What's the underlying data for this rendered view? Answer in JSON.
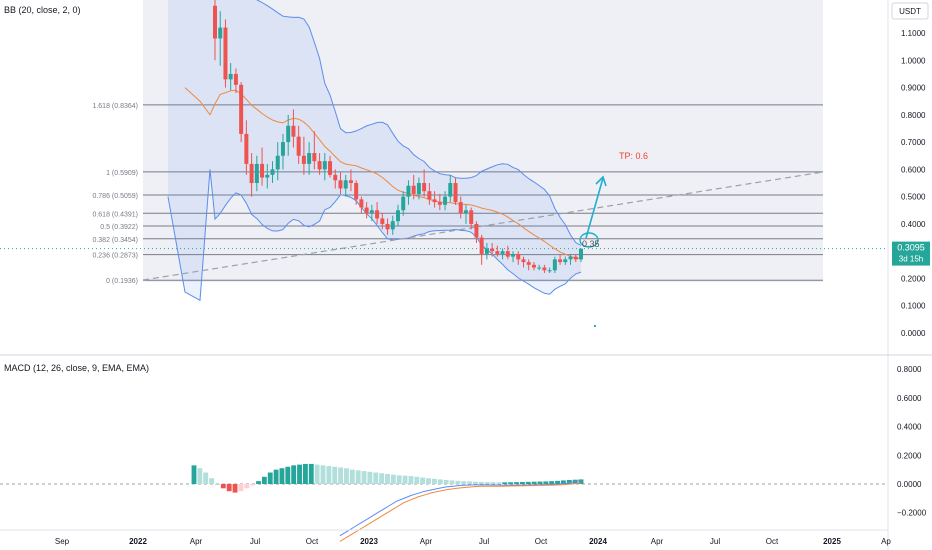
{
  "main_pane": {
    "indicator_label": "BB (20, close, 2, 0)",
    "currency": "USDT",
    "y_ticks": [
      "1.1000",
      "1.0000",
      "0.9000",
      "0.8000",
      "0.7000",
      "0.6000",
      "0.5000",
      "0.4000",
      "0.3000",
      "0.2000",
      "0.1000",
      "0.0000"
    ],
    "last_price": "0.3095",
    "countdown": "3d 15h",
    "tp_label": "TP: 0.6",
    "target_label": "0.35",
    "fib_labels": [
      "1.618 (0.8364)",
      "1 (0.5909)",
      "0.786 (0.5059)",
      "0.618 (0.4391)",
      "0.5 (0.3922)",
      "0.382 (0.3454)",
      "0.236 (0.2873)",
      "0 (0.1936)"
    ]
  },
  "macd_pane": {
    "indicator_label": "MACD (12, 26, close, 9, EMA, EMA)",
    "y_ticks": [
      "0.8000",
      "0.6000",
      "0.4000",
      "0.2000",
      "0.0000",
      "−0.2000"
    ]
  },
  "x_axis": {
    "labels": [
      "Sep",
      "2022",
      "Apr",
      "Jul",
      "Oct",
      "2023",
      "Apr",
      "Jul",
      "Oct",
      "2024",
      "Apr",
      "Jul",
      "Oct",
      "2025",
      "Ap"
    ]
  },
  "colors": {
    "up": "#26a69a",
    "down": "#ef5350",
    "bb_band": "#5b8def",
    "bb_basis": "#f0883e",
    "price_label": "#26a69a",
    "tp_text": "#f44336",
    "arrow": "#22aecd",
    "fib_line": "#787b86"
  },
  "chart_data": [
    {
      "type": "candlestick",
      "title": "",
      "y_range": [
        -0.05,
        1.2
      ],
      "fib_levels": [
        {
          "ratio": 1.618,
          "price": 0.8364
        },
        {
          "ratio": 1,
          "price": 0.5909
        },
        {
          "ratio": 0.786,
          "price": 0.5059
        },
        {
          "ratio": 0.618,
          "price": 0.4391
        },
        {
          "ratio": 0.5,
          "price": 0.3922
        },
        {
          "ratio": 0.382,
          "price": 0.3454
        },
        {
          "ratio": 0.236,
          "price": 0.2873
        },
        {
          "ratio": 0,
          "price": 0.1936
        }
      ],
      "last_price": 0.3095,
      "target": 0.35,
      "take_profit": 0.6,
      "candles": [
        {
          "o": 1.2,
          "h": 1.25,
          "l": 1.0,
          "c": 1.08
        },
        {
          "o": 1.08,
          "h": 1.18,
          "l": 0.98,
          "c": 1.12
        },
        {
          "o": 1.12,
          "h": 1.15,
          "l": 0.9,
          "c": 0.93
        },
        {
          "o": 0.93,
          "h": 0.99,
          "l": 0.89,
          "c": 0.95
        },
        {
          "o": 0.95,
          "h": 0.97,
          "l": 0.88,
          "c": 0.91
        },
        {
          "o": 0.91,
          "h": 0.92,
          "l": 0.7,
          "c": 0.73
        },
        {
          "o": 0.73,
          "h": 0.78,
          "l": 0.58,
          "c": 0.62
        },
        {
          "o": 0.62,
          "h": 0.66,
          "l": 0.5,
          "c": 0.55
        },
        {
          "o": 0.55,
          "h": 0.65,
          "l": 0.52,
          "c": 0.62
        },
        {
          "o": 0.62,
          "h": 0.68,
          "l": 0.54,
          "c": 0.57
        },
        {
          "o": 0.57,
          "h": 0.62,
          "l": 0.53,
          "c": 0.58
        },
        {
          "o": 0.58,
          "h": 0.63,
          "l": 0.55,
          "c": 0.6
        },
        {
          "o": 0.6,
          "h": 0.7,
          "l": 0.56,
          "c": 0.65
        },
        {
          "o": 0.65,
          "h": 0.73,
          "l": 0.6,
          "c": 0.7
        },
        {
          "o": 0.7,
          "h": 0.8,
          "l": 0.65,
          "c": 0.76
        },
        {
          "o": 0.76,
          "h": 0.82,
          "l": 0.68,
          "c": 0.72
        },
        {
          "o": 0.72,
          "h": 0.76,
          "l": 0.62,
          "c": 0.65
        },
        {
          "o": 0.65,
          "h": 0.72,
          "l": 0.58,
          "c": 0.62
        },
        {
          "o": 0.62,
          "h": 0.7,
          "l": 0.58,
          "c": 0.66
        },
        {
          "o": 0.66,
          "h": 0.74,
          "l": 0.6,
          "c": 0.63
        },
        {
          "o": 0.63,
          "h": 0.66,
          "l": 0.58,
          "c": 0.6
        },
        {
          "o": 0.6,
          "h": 0.66,
          "l": 0.56,
          "c": 0.63
        },
        {
          "o": 0.63,
          "h": 0.65,
          "l": 0.57,
          "c": 0.58
        },
        {
          "o": 0.58,
          "h": 0.6,
          "l": 0.53,
          "c": 0.56
        },
        {
          "o": 0.56,
          "h": 0.59,
          "l": 0.51,
          "c": 0.53
        },
        {
          "o": 0.53,
          "h": 0.58,
          "l": 0.5,
          "c": 0.56
        },
        {
          "o": 0.56,
          "h": 0.6,
          "l": 0.52,
          "c": 0.55
        },
        {
          "o": 0.55,
          "h": 0.56,
          "l": 0.47,
          "c": 0.49
        },
        {
          "o": 0.49,
          "h": 0.5,
          "l": 0.44,
          "c": 0.46
        },
        {
          "o": 0.46,
          "h": 0.48,
          "l": 0.42,
          "c": 0.44
        },
        {
          "o": 0.44,
          "h": 0.47,
          "l": 0.41,
          "c": 0.45
        },
        {
          "o": 0.45,
          "h": 0.48,
          "l": 0.4,
          "c": 0.42
        },
        {
          "o": 0.42,
          "h": 0.44,
          "l": 0.38,
          "c": 0.4
        },
        {
          "o": 0.4,
          "h": 0.42,
          "l": 0.36,
          "c": 0.38
        },
        {
          "o": 0.38,
          "h": 0.43,
          "l": 0.36,
          "c": 0.41
        },
        {
          "o": 0.41,
          "h": 0.47,
          "l": 0.39,
          "c": 0.45
        },
        {
          "o": 0.45,
          "h": 0.52,
          "l": 0.43,
          "c": 0.5
        },
        {
          "o": 0.5,
          "h": 0.56,
          "l": 0.47,
          "c": 0.54
        },
        {
          "o": 0.54,
          "h": 0.58,
          "l": 0.49,
          "c": 0.51
        },
        {
          "o": 0.51,
          "h": 0.57,
          "l": 0.49,
          "c": 0.55
        },
        {
          "o": 0.55,
          "h": 0.6,
          "l": 0.5,
          "c": 0.52
        },
        {
          "o": 0.52,
          "h": 0.55,
          "l": 0.47,
          "c": 0.49
        },
        {
          "o": 0.49,
          "h": 0.52,
          "l": 0.46,
          "c": 0.48
        },
        {
          "o": 0.48,
          "h": 0.51,
          "l": 0.45,
          "c": 0.47
        },
        {
          "o": 0.47,
          "h": 0.52,
          "l": 0.45,
          "c": 0.5
        },
        {
          "o": 0.5,
          "h": 0.58,
          "l": 0.48,
          "c": 0.55
        },
        {
          "o": 0.55,
          "h": 0.57,
          "l": 0.47,
          "c": 0.48
        },
        {
          "o": 0.48,
          "h": 0.5,
          "l": 0.42,
          "c": 0.44
        },
        {
          "o": 0.44,
          "h": 0.47,
          "l": 0.4,
          "c": 0.45
        },
        {
          "o": 0.45,
          "h": 0.46,
          "l": 0.38,
          "c": 0.4
        },
        {
          "o": 0.4,
          "h": 0.41,
          "l": 0.33,
          "c": 0.35
        },
        {
          "o": 0.35,
          "h": 0.36,
          "l": 0.25,
          "c": 0.29
        },
        {
          "o": 0.29,
          "h": 0.33,
          "l": 0.27,
          "c": 0.31
        },
        {
          "o": 0.31,
          "h": 0.33,
          "l": 0.28,
          "c": 0.3
        },
        {
          "o": 0.3,
          "h": 0.32,
          "l": 0.28,
          "c": 0.29
        },
        {
          "o": 0.29,
          "h": 0.31,
          "l": 0.27,
          "c": 0.3
        },
        {
          "o": 0.3,
          "h": 0.32,
          "l": 0.27,
          "c": 0.28
        },
        {
          "o": 0.28,
          "h": 0.3,
          "l": 0.26,
          "c": 0.29
        },
        {
          "o": 0.29,
          "h": 0.3,
          "l": 0.25,
          "c": 0.27
        },
        {
          "o": 0.27,
          "h": 0.28,
          "l": 0.24,
          "c": 0.26
        },
        {
          "o": 0.26,
          "h": 0.27,
          "l": 0.23,
          "c": 0.25
        },
        {
          "o": 0.25,
          "h": 0.26,
          "l": 0.23,
          "c": 0.24
        },
        {
          "o": 0.24,
          "h": 0.25,
          "l": 0.23,
          "c": 0.24
        },
        {
          "o": 0.24,
          "h": 0.25,
          "l": 0.22,
          "c": 0.23
        },
        {
          "o": 0.23,
          "h": 0.24,
          "l": 0.22,
          "c": 0.23
        },
        {
          "o": 0.23,
          "h": 0.28,
          "l": 0.22,
          "c": 0.27
        },
        {
          "o": 0.27,
          "h": 0.29,
          "l": 0.25,
          "c": 0.26
        },
        {
          "o": 0.26,
          "h": 0.28,
          "l": 0.25,
          "c": 0.27
        },
        {
          "o": 0.27,
          "h": 0.29,
          "l": 0.25,
          "c": 0.28
        },
        {
          "o": 0.28,
          "h": 0.29,
          "l": 0.26,
          "c": 0.27
        },
        {
          "o": 0.27,
          "h": 0.31,
          "l": 0.26,
          "c": 0.3095
        }
      ]
    },
    {
      "type": "histogram",
      "title": "",
      "y_range": [
        -0.35,
        0.85
      ],
      "histogram": [
        0.13,
        0.11,
        0.08,
        0.04,
        0.0,
        -0.03,
        -0.05,
        -0.06,
        -0.05,
        -0.03,
        -0.01,
        0.02,
        0.05,
        0.08,
        0.1,
        0.11,
        0.12,
        0.13,
        0.135,
        0.14,
        0.14,
        0.135,
        0.13,
        0.125,
        0.12,
        0.115,
        0.11,
        0.1,
        0.095,
        0.09,
        0.085,
        0.08,
        0.075,
        0.07,
        0.065,
        0.06,
        0.058,
        0.055,
        0.05,
        0.045,
        0.04,
        0.036,
        0.032,
        0.028,
        0.025,
        0.022,
        0.02,
        0.018,
        0.016,
        0.015,
        0.014,
        0.013,
        0.012,
        0.012,
        0.012,
        0.013,
        0.014,
        0.015,
        0.016,
        0.017,
        0.018,
        0.02,
        0.022,
        0.025,
        0.028,
        0.03,
        0.032
      ],
      "macd_line": [
        -0.36,
        -0.33,
        -0.3,
        -0.27,
        -0.24,
        -0.21,
        -0.18,
        -0.15,
        -0.12,
        -0.1,
        -0.08,
        -0.065,
        -0.05,
        -0.04,
        -0.03,
        -0.02,
        -0.015,
        -0.01,
        -0.008,
        -0.006,
        -0.005,
        -0.006,
        -0.007,
        -0.008,
        -0.008,
        -0.008,
        -0.007,
        -0.006,
        -0.005,
        -0.004,
        -0.003,
        0.0,
        0.005,
        0.015,
        0.025
      ],
      "signal_line": [
        -0.4,
        -0.37,
        -0.34,
        -0.31,
        -0.28,
        -0.25,
        -0.22,
        -0.19,
        -0.16,
        -0.13,
        -0.11,
        -0.09,
        -0.075,
        -0.06,
        -0.05,
        -0.04,
        -0.033,
        -0.027,
        -0.022,
        -0.018,
        -0.016,
        -0.015,
        -0.015,
        -0.015,
        -0.014,
        -0.013,
        -0.012,
        -0.011,
        -0.01,
        -0.009,
        -0.008,
        -0.006,
        -0.003,
        0.002,
        0.008
      ]
    }
  ]
}
